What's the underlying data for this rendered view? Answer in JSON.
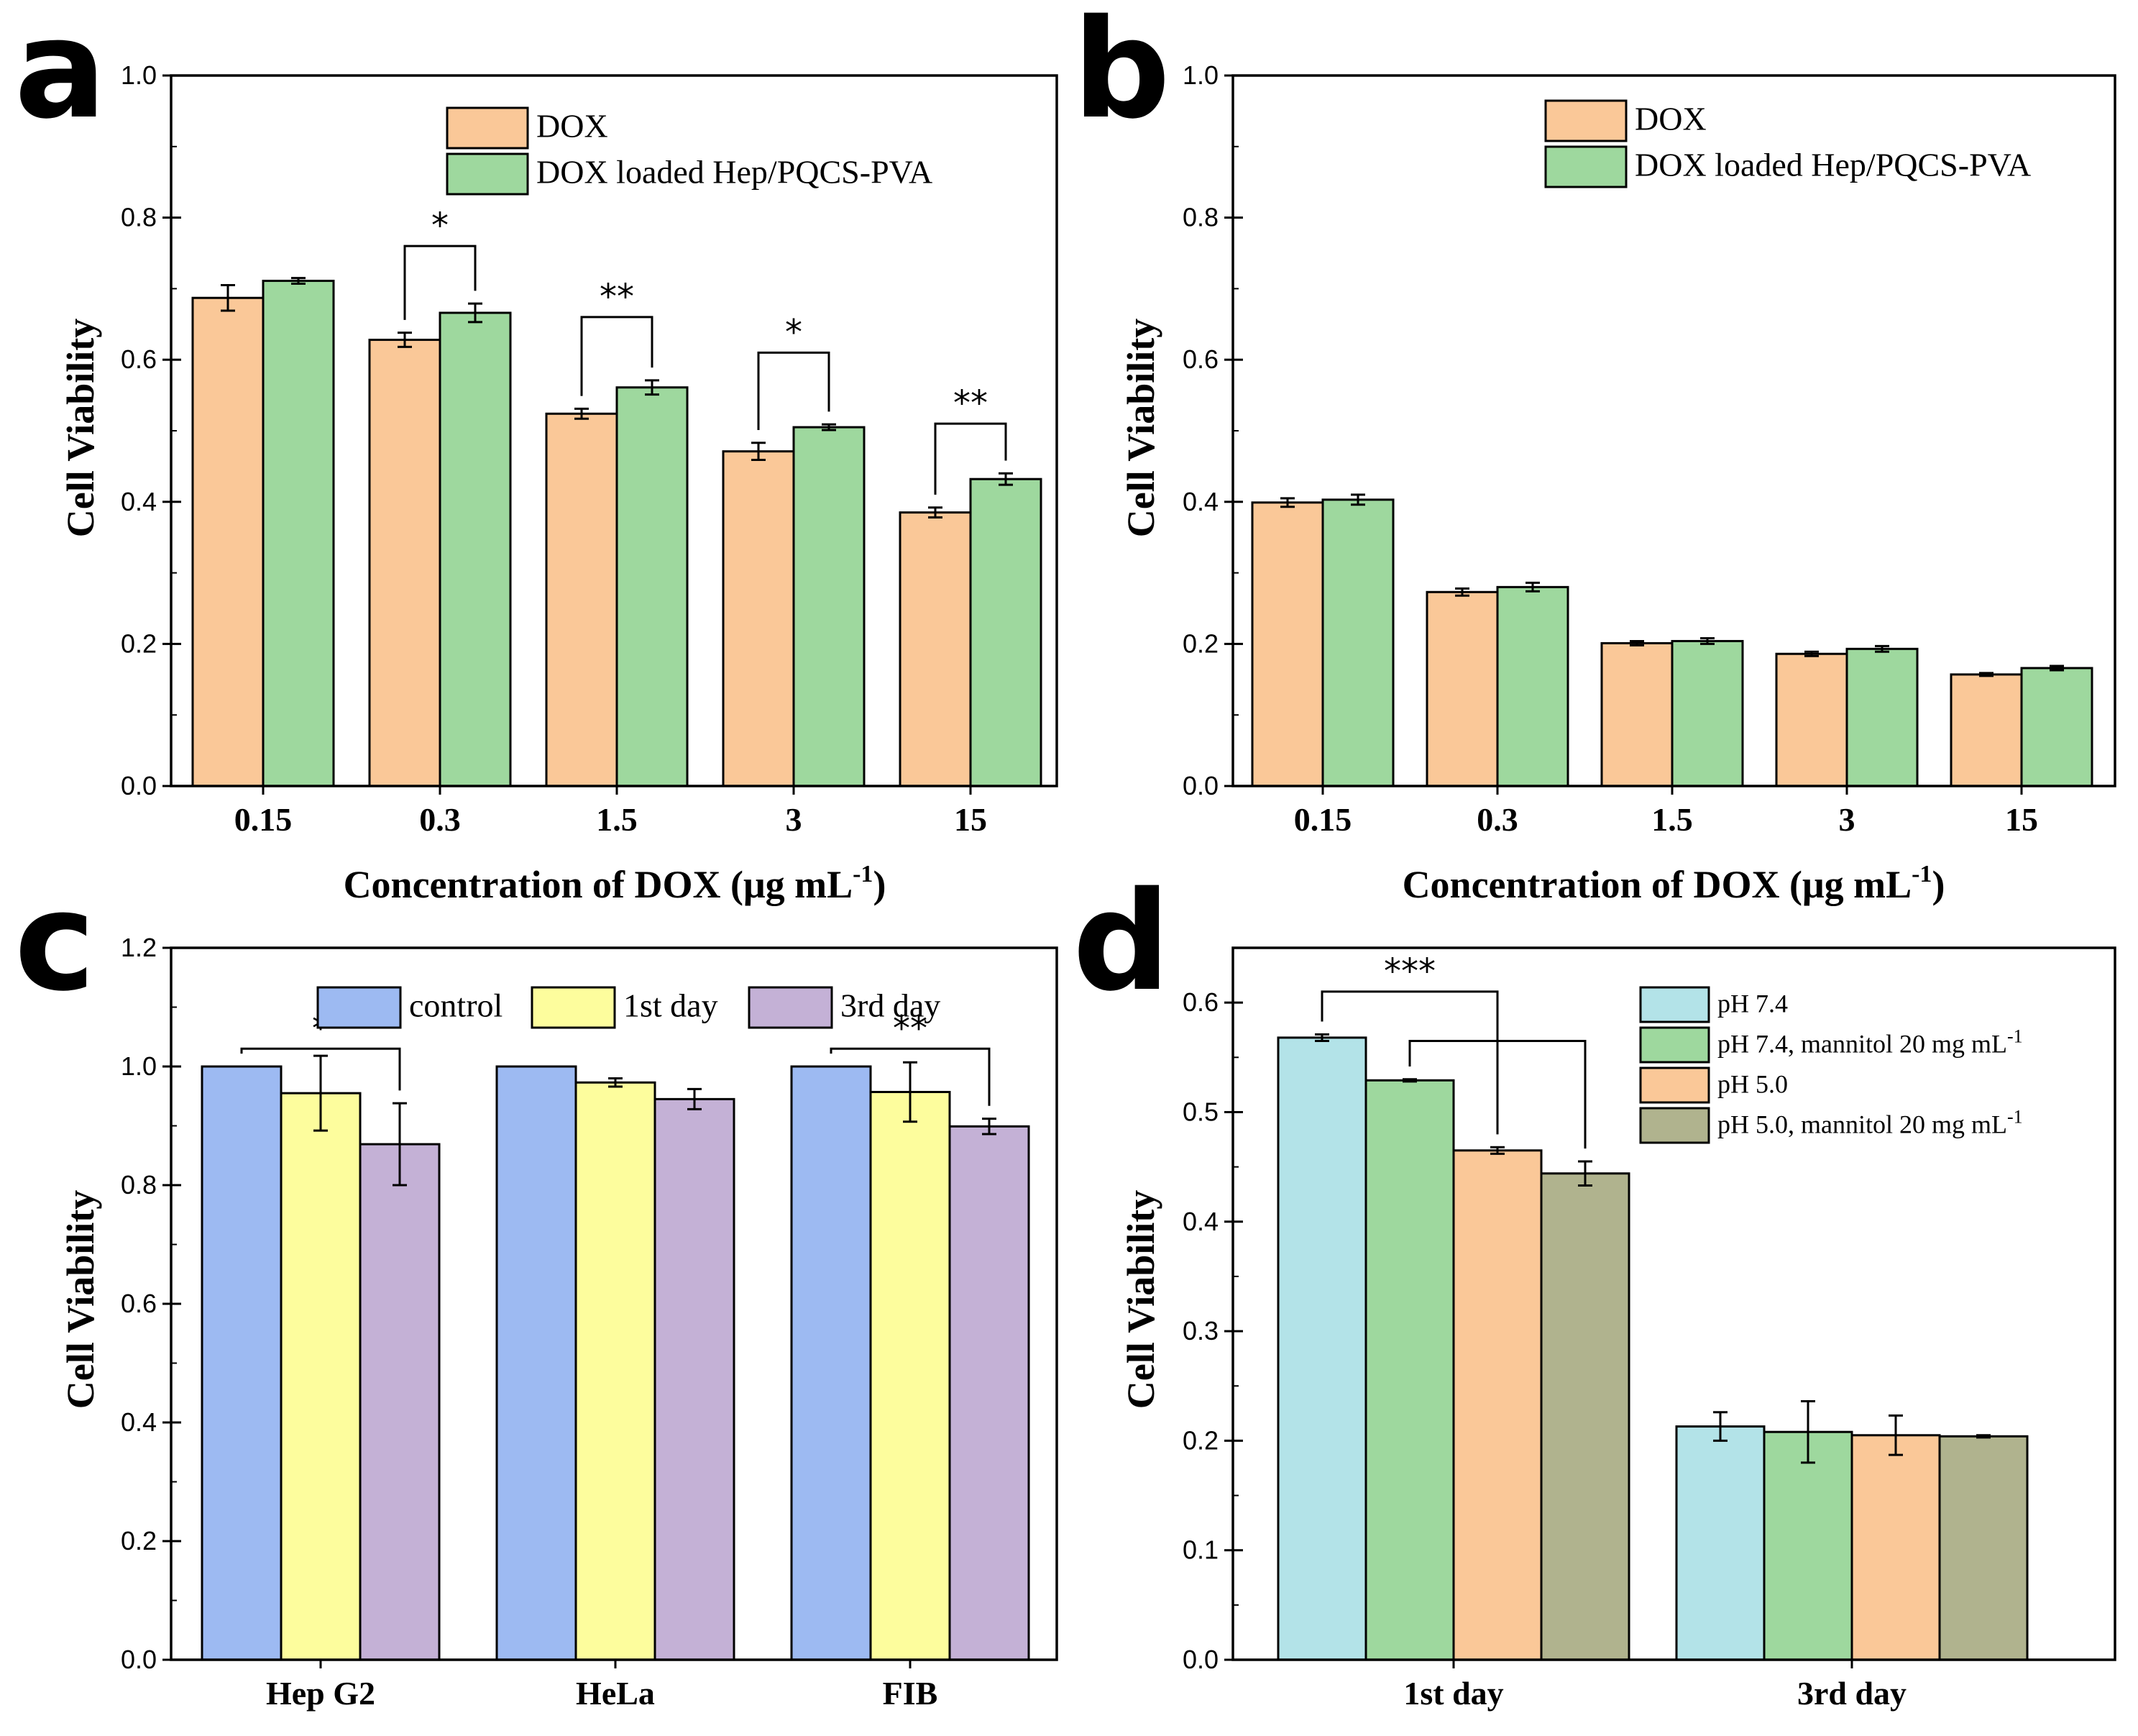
{
  "chart_data": [
    {
      "panel": "a",
      "type": "bar",
      "ylabel": "Cell Viability",
      "xlabel": "Concentration of DOX (μg mL",
      "xlabel_sup": "-1",
      "xlabel_end": ")",
      "ylim": [
        0,
        1.0
      ],
      "yticks": [
        "0.0",
        "0.2",
        "0.4",
        "0.6",
        "0.8",
        "1.0"
      ],
      "categories": [
        "0.15",
        "0.3",
        "1.5",
        "3",
        "15"
      ],
      "series": [
        {
          "name": "DOX",
          "color": "#FAC898",
          "values": [
            0.687,
            0.628,
            0.524,
            0.471,
            0.385
          ],
          "errors": [
            0.018,
            0.01,
            0.007,
            0.012,
            0.007
          ]
        },
        {
          "name": "DOX loaded Hep/PQCS-PVA",
          "color": "#9ED89E",
          "values": [
            0.711,
            0.666,
            0.561,
            0.505,
            0.432
          ],
          "errors": [
            0.004,
            0.013,
            0.01,
            0.004,
            0.008
          ]
        }
      ],
      "significance": [
        {
          "cat": 1,
          "label": "*",
          "level": 0.76
        },
        {
          "cat": 2,
          "label": "**",
          "level": 0.66
        },
        {
          "cat": 3,
          "label": "*",
          "level": 0.61
        },
        {
          "cat": 4,
          "label": "**",
          "level": 0.51
        }
      ]
    },
    {
      "panel": "b",
      "type": "bar",
      "ylabel": "Cell Viability",
      "xlabel": "Concentration of DOX (μg mL",
      "xlabel_sup": "-1",
      "xlabel_end": ")",
      "ylim": [
        0,
        1.0
      ],
      "yticks": [
        "0.0",
        "0.2",
        "0.4",
        "0.6",
        "0.8",
        "1.0"
      ],
      "categories": [
        "0.15",
        "0.3",
        "1.5",
        "3",
        "15"
      ],
      "series": [
        {
          "name": "DOX",
          "color": "#FAC898",
          "values": [
            0.399,
            0.273,
            0.201,
            0.186,
            0.157
          ],
          "errors": [
            0.006,
            0.005,
            0.003,
            0.003,
            0.002
          ]
        },
        {
          "name": "DOX loaded Hep/PQCS-PVA",
          "color": "#9ED89E",
          "values": [
            0.403,
            0.28,
            0.204,
            0.193,
            0.166
          ],
          "errors": [
            0.007,
            0.006,
            0.004,
            0.004,
            0.003
          ]
        }
      ],
      "significance": []
    },
    {
      "panel": "c",
      "type": "bar",
      "ylabel": "Cell Viability",
      "ylim": [
        0,
        1.2
      ],
      "yticks": [
        "0.0",
        "0.2",
        "0.4",
        "0.6",
        "0.8",
        "1.0",
        "1.2"
      ],
      "categories": [
        "Hep G2",
        "HeLa",
        "FIB"
      ],
      "series": [
        {
          "name": "control",
          "color": "#9DBAF2",
          "values": [
            1.0,
            1.0,
            1.0
          ],
          "errors": [
            0,
            0,
            0
          ]
        },
        {
          "name": "1st day",
          "color": "#FDFD9D",
          "values": [
            0.955,
            0.973,
            0.957
          ],
          "errors": [
            0.063,
            0.007,
            0.05
          ]
        },
        {
          "name": "3rd day",
          "color": "#C4B1D6",
          "values": [
            0.869,
            0.945,
            0.899
          ],
          "errors": [
            0.069,
            0.017,
            0.013
          ]
        }
      ],
      "significance": [
        {
          "cat": 0,
          "label": "*",
          "level": 1.03
        },
        {
          "cat": 2,
          "label": "**",
          "level": 1.03
        }
      ]
    },
    {
      "panel": "d",
      "type": "bar",
      "ylabel": "Cell Viability",
      "ylim": [
        0,
        0.65
      ],
      "yticks": [
        "0.0",
        "0.1",
        "0.2",
        "0.3",
        "0.4",
        "0.5",
        "0.6"
      ],
      "categories": [
        "1st day",
        "3rd day"
      ],
      "series": [
        {
          "name": "pH 7.4",
          "color": "#B3E3E8",
          "values": [
            0.568,
            0.213
          ],
          "errors": [
            0.003,
            0.013
          ]
        },
        {
          "name": "pH 7.4, mannitol 20 mg mL",
          "sup": "-1",
          "color": "#9ED89E",
          "values": [
            0.529,
            0.208
          ],
          "errors": [
            0.001,
            0.028
          ]
        },
        {
          "name": "pH 5.0",
          "color": "#FAC898",
          "values": [
            0.465,
            0.205
          ],
          "errors": [
            0.003,
            0.018
          ]
        },
        {
          "name": "pH 5.0, mannitol 20 mg mL",
          "sup": "-1",
          "color": "#B0B38E",
          "values": [
            0.444,
            0.204
          ],
          "errors": [
            0.011,
            0.001
          ]
        }
      ],
      "significance": [
        {
          "label": "***",
          "from": [
            0,
            0
          ],
          "to": [
            0,
            2
          ],
          "level": 0.61
        },
        {
          "label": "",
          "from": [
            0,
            1
          ],
          "to": [
            0,
            3
          ],
          "level": 0.565
        }
      ]
    }
  ]
}
